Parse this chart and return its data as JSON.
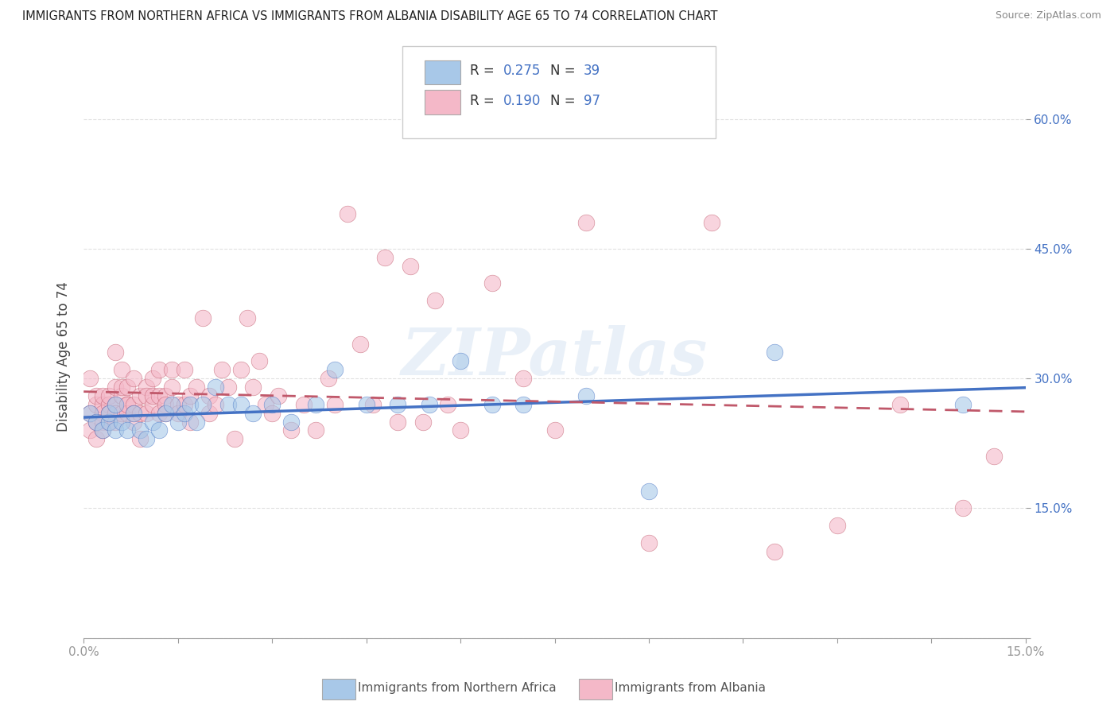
{
  "title": "IMMIGRANTS FROM NORTHERN AFRICA VS IMMIGRANTS FROM ALBANIA DISABILITY AGE 65 TO 74 CORRELATION CHART",
  "source": "Source: ZipAtlas.com",
  "ylabel": "Disability Age 65 to 74",
  "legend_label_1": "Immigrants from Northern Africa",
  "legend_label_2": "Immigrants from Albania",
  "R1": 0.275,
  "N1": 39,
  "R2": 0.19,
  "N2": 97,
  "xlim": [
    0,
    0.15
  ],
  "ylim": [
    0,
    0.65
  ],
  "xticks_shown": [
    0.0,
    0.15
  ],
  "xtick_minor": [
    0.015,
    0.03,
    0.045,
    0.06,
    0.075,
    0.09,
    0.105,
    0.12,
    0.135
  ],
  "yticks": [
    0.0,
    0.15,
    0.3,
    0.45,
    0.6
  ],
  "ytick_labels_right": [
    "",
    "15.0%",
    "30.0%",
    "45.0%",
    "60.0%"
  ],
  "color_blue": "#a8c8e8",
  "color_pink": "#f4b8c8",
  "color_blue_line": "#4472c4",
  "color_pink_line": "#c0586a",
  "watermark": "ZIPatlas",
  "blue_scatter_x": [
    0.001,
    0.002,
    0.003,
    0.004,
    0.004,
    0.005,
    0.005,
    0.006,
    0.007,
    0.008,
    0.009,
    0.01,
    0.011,
    0.012,
    0.013,
    0.014,
    0.015,
    0.016,
    0.017,
    0.018,
    0.019,
    0.021,
    0.023,
    0.025,
    0.027,
    0.03,
    0.033,
    0.037,
    0.04,
    0.045,
    0.05,
    0.055,
    0.06,
    0.065,
    0.07,
    0.08,
    0.09,
    0.11,
    0.14
  ],
  "blue_scatter_y": [
    0.26,
    0.25,
    0.24,
    0.25,
    0.26,
    0.24,
    0.27,
    0.25,
    0.24,
    0.26,
    0.24,
    0.23,
    0.25,
    0.24,
    0.26,
    0.27,
    0.25,
    0.26,
    0.27,
    0.25,
    0.27,
    0.29,
    0.27,
    0.27,
    0.26,
    0.27,
    0.25,
    0.27,
    0.31,
    0.27,
    0.27,
    0.27,
    0.32,
    0.27,
    0.27,
    0.28,
    0.17,
    0.33,
    0.27
  ],
  "pink_scatter_x": [
    0.001,
    0.001,
    0.001,
    0.002,
    0.002,
    0.002,
    0.002,
    0.003,
    0.003,
    0.003,
    0.003,
    0.003,
    0.004,
    0.004,
    0.004,
    0.004,
    0.005,
    0.005,
    0.005,
    0.005,
    0.005,
    0.006,
    0.006,
    0.006,
    0.006,
    0.007,
    0.007,
    0.007,
    0.007,
    0.008,
    0.008,
    0.008,
    0.008,
    0.009,
    0.009,
    0.009,
    0.01,
    0.01,
    0.01,
    0.011,
    0.011,
    0.011,
    0.012,
    0.012,
    0.012,
    0.013,
    0.013,
    0.013,
    0.014,
    0.014,
    0.015,
    0.015,
    0.016,
    0.016,
    0.017,
    0.017,
    0.018,
    0.019,
    0.02,
    0.02,
    0.021,
    0.022,
    0.023,
    0.024,
    0.025,
    0.026,
    0.027,
    0.028,
    0.029,
    0.03,
    0.031,
    0.033,
    0.035,
    0.037,
    0.039,
    0.04,
    0.042,
    0.044,
    0.046,
    0.048,
    0.05,
    0.052,
    0.054,
    0.056,
    0.058,
    0.06,
    0.065,
    0.07,
    0.075,
    0.08,
    0.09,
    0.1,
    0.11,
    0.12,
    0.13,
    0.14,
    0.145
  ],
  "pink_scatter_y": [
    0.26,
    0.3,
    0.24,
    0.27,
    0.25,
    0.28,
    0.23,
    0.27,
    0.26,
    0.25,
    0.28,
    0.24,
    0.27,
    0.26,
    0.28,
    0.25,
    0.27,
    0.29,
    0.26,
    0.25,
    0.33,
    0.28,
    0.31,
    0.29,
    0.26,
    0.27,
    0.29,
    0.26,
    0.27,
    0.27,
    0.3,
    0.26,
    0.25,
    0.28,
    0.26,
    0.23,
    0.29,
    0.28,
    0.26,
    0.27,
    0.28,
    0.3,
    0.28,
    0.31,
    0.26,
    0.28,
    0.27,
    0.26,
    0.29,
    0.31,
    0.27,
    0.26,
    0.27,
    0.31,
    0.28,
    0.25,
    0.29,
    0.37,
    0.28,
    0.26,
    0.27,
    0.31,
    0.29,
    0.23,
    0.31,
    0.37,
    0.29,
    0.32,
    0.27,
    0.26,
    0.28,
    0.24,
    0.27,
    0.24,
    0.3,
    0.27,
    0.49,
    0.34,
    0.27,
    0.44,
    0.25,
    0.43,
    0.25,
    0.39,
    0.27,
    0.24,
    0.41,
    0.3,
    0.24,
    0.48,
    0.11,
    0.48,
    0.1,
    0.13,
    0.27,
    0.15,
    0.21
  ],
  "grid_color": "#e0e0e0",
  "tick_color": "#999999"
}
